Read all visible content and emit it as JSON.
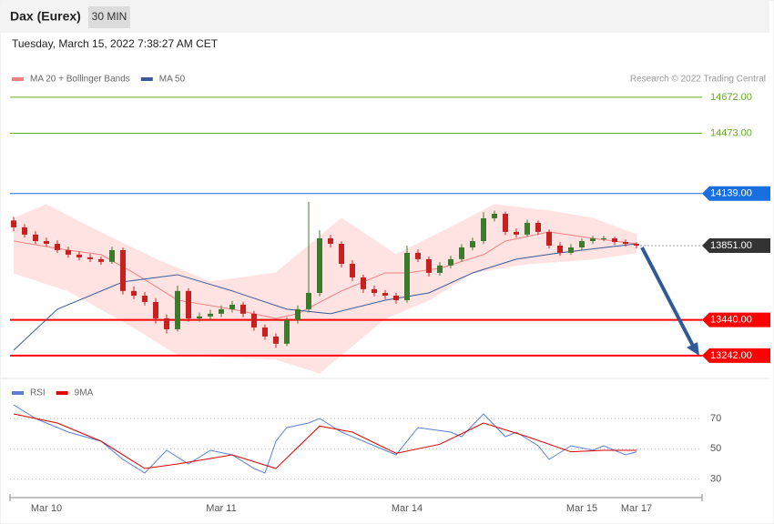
{
  "header": {
    "title": "Dax (Eurex)",
    "interval": "30 MIN",
    "timestamp": "Tuesday, March 15, 2022 7:38:27 AM CET",
    "credit": "Research © 2022 Trading Central"
  },
  "chart_data": [
    {
      "type": "candlestick",
      "categories": [
        null,
        null,
        null,
        "Mar 10",
        null,
        null,
        null,
        null,
        null,
        null,
        null,
        null,
        null,
        null,
        null,
        null,
        null,
        null,
        null,
        "Mar 11",
        null,
        null,
        null,
        null,
        null,
        null,
        null,
        null,
        null,
        null,
        null,
        null,
        null,
        null,
        null,
        null,
        "Mar 14",
        null,
        null,
        null,
        null,
        null,
        null,
        null,
        null,
        null,
        null,
        null,
        null,
        null,
        null,
        null,
        "Mar 15",
        null,
        null,
        null,
        null,
        "Mar 17"
      ],
      "open": [
        13990,
        13952,
        13912,
        13876,
        13861,
        13826,
        13801,
        13786,
        13776,
        13761,
        13826,
        13600,
        13574,
        13539,
        13448,
        13388,
        13600,
        13448,
        13459,
        13474,
        13499,
        13524,
        13474,
        13398,
        13348,
        13308,
        13438,
        13499,
        13589,
        13891,
        13861,
        13750,
        13675,
        13610,
        13589,
        13574,
        13549,
        13811,
        13776,
        13700,
        13741,
        13776,
        13841,
        13876,
        14002,
        14027,
        13927,
        13912,
        13977,
        13927,
        13851,
        13811,
        13841,
        13876,
        13891,
        13891,
        13871,
        13861
      ],
      "high": [
        14010,
        13970,
        13930,
        13895,
        13880,
        13845,
        13820,
        13805,
        13790,
        13845,
        13840,
        13625,
        13595,
        13560,
        13470,
        13630,
        13615,
        13480,
        13495,
        13520,
        13545,
        13540,
        13490,
        13415,
        13365,
        13455,
        13520,
        14093,
        13935,
        13910,
        13875,
        13770,
        13690,
        13630,
        13605,
        13590,
        13850,
        13830,
        13790,
        13760,
        13795,
        13860,
        13895,
        14035,
        14045,
        14040,
        13945,
        13995,
        13990,
        13940,
        13870,
        13860,
        13890,
        13905,
        13905,
        13900,
        13885,
        13870
      ],
      "low": [
        13930,
        13895,
        13860,
        13845,
        13810,
        13785,
        13770,
        13760,
        13745,
        13750,
        13580,
        13555,
        13520,
        13420,
        13365,
        13375,
        13430,
        13430,
        13440,
        13455,
        13480,
        13455,
        13380,
        13330,
        13285,
        13295,
        13420,
        13480,
        13570,
        13840,
        13730,
        13655,
        13590,
        13570,
        13555,
        13530,
        13535,
        13760,
        13680,
        13685,
        13725,
        13760,
        13825,
        13860,
        13985,
        13910,
        13895,
        13900,
        13910,
        13835,
        13795,
        13800,
        13825,
        13860,
        13875,
        13855,
        13845,
        13835
      ],
      "close": [
        13952,
        13912,
        13876,
        13861,
        13826,
        13801,
        13786,
        13776,
        13761,
        13826,
        13600,
        13574,
        13539,
        13448,
        13388,
        13600,
        13448,
        13459,
        13474,
        13499,
        13524,
        13474,
        13398,
        13348,
        13308,
        13438,
        13499,
        13589,
        13891,
        13861,
        13750,
        13675,
        13610,
        13589,
        13574,
        13549,
        13811,
        13776,
        13700,
        13741,
        13776,
        13841,
        13876,
        14002,
        14027,
        13927,
        13912,
        13977,
        13927,
        13851,
        13811,
        13841,
        13876,
        13891,
        13891,
        13871,
        13861,
        13851
      ],
      "up_color": "#3d7a2e",
      "down_color": "#c8201e",
      "ylim": [
        13146,
        14732
      ],
      "series": [
        {
          "name": "MA 20 + Bollinger Bands",
          "color": "#f08080",
          "band_color": "#ffe3e3",
          "x": [
            0,
            5,
            8,
            11,
            15,
            20,
            24,
            26,
            30,
            34,
            36,
            39,
            43,
            45,
            49,
            53,
            57
          ],
          "values": [
            13876,
            13826,
            13801,
            13700,
            13549,
            13499,
            13448,
            13474,
            13600,
            13700,
            13700,
            13725,
            13801,
            13876,
            13927,
            13891,
            13861
          ],
          "upper": {
            "x": [
              0,
              3,
              7,
              13,
              18,
              24,
              30,
              35,
              40,
              44,
              49,
              53,
              57
            ],
            "values": [
              14002,
              14078,
              13952,
              13776,
              13650,
              13700,
              14002,
              13801,
              13952,
              14078,
              14043,
              14002,
              13912
            ]
          },
          "lower": {
            "x": [
              0,
              5,
              11,
              15,
              24,
              28,
              34,
              38,
              42,
              47,
              53,
              57
            ],
            "values": [
              13700,
              13600,
              13398,
              13247,
              13222,
              13146,
              13448,
              13549,
              13700,
              13750,
              13776,
              13811
            ]
          }
        },
        {
          "name": "MA 50",
          "color": "#3a5a98",
          "x": [
            0,
            4,
            10,
            15,
            20,
            25,
            29,
            34,
            38,
            42,
            46,
            50,
            57
          ],
          "values": [
            13272,
            13499,
            13650,
            13690,
            13600,
            13499,
            13474,
            13549,
            13589,
            13700,
            13776,
            13811,
            13861
          ]
        }
      ],
      "levels": [
        {
          "value": 14672,
          "label": "14672.00",
          "color": "#66aa22",
          "tag": false,
          "line": "solid"
        },
        {
          "value": 14473,
          "label": "14473.00",
          "color": "#66aa22",
          "tag": false,
          "line": "solid"
        },
        {
          "value": 14139,
          "label": "14139.00",
          "color": "#1a6fe0",
          "tag": true,
          "line": "solid"
        },
        {
          "value": 13851,
          "label": "13851.00",
          "color": "#333333",
          "tag": true,
          "line": "dotted"
        },
        {
          "value": 13440,
          "label": "13440.00",
          "color": "#ff0000",
          "tag": true,
          "line": "solid"
        },
        {
          "value": 13242,
          "label": "13242.00",
          "color": "#ff0000",
          "tag": true,
          "line": "solid"
        }
      ]
    },
    {
      "type": "line",
      "ylim": [
        19,
        82
      ],
      "yticks": [
        70,
        50,
        30
      ],
      "series": [
        {
          "name": "RSI",
          "color": "#5b7fd6",
          "x": [
            0,
            2,
            5,
            8,
            10,
            12,
            14,
            16,
            18,
            20,
            22,
            23,
            24,
            25,
            27,
            28,
            30,
            33,
            35,
            37,
            40,
            41,
            43,
            45,
            46,
            48,
            49,
            51,
            53,
            54,
            56,
            57
          ],
          "values": [
            79,
            70,
            61,
            55,
            43,
            34,
            49,
            40,
            49,
            46,
            37,
            34,
            55,
            64,
            67,
            70,
            61,
            52,
            46,
            64,
            61,
            58,
            73,
            58,
            61,
            52,
            43,
            52,
            49,
            52,
            46,
            48
          ]
        },
        {
          "name": "9MA",
          "color": "#e00000",
          "x": [
            0,
            4,
            8,
            12,
            15,
            20,
            24,
            28,
            31,
            35,
            39,
            43,
            47,
            51,
            54,
            57
          ],
          "values": [
            73,
            67,
            55,
            37,
            40,
            46,
            37,
            65,
            61,
            47,
            53,
            67,
            58,
            48,
            49,
            49
          ]
        }
      ]
    }
  ]
}
